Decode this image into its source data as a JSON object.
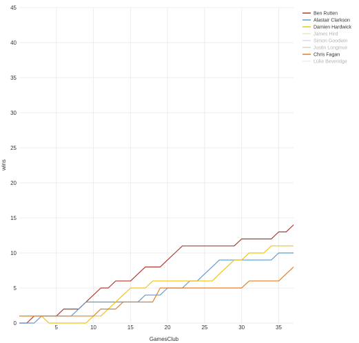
{
  "chart_data": {
    "type": "line",
    "xlabel": "GamesClub",
    "ylabel": "wins",
    "xlim": [
      0,
      37
    ],
    "ylim": [
      0,
      45
    ],
    "xticks": [
      5,
      10,
      15,
      20,
      25,
      30,
      35
    ],
    "yticks": [
      0,
      5,
      10,
      15,
      20,
      25,
      30,
      35,
      40,
      45
    ],
    "grid": true,
    "legend_position": "top-right",
    "series": [
      {
        "name": "Ben Rutten",
        "color": "#b03a2e",
        "faded": false,
        "x": [
          0,
          1,
          2,
          3,
          4,
          5,
          6,
          7,
          8,
          9,
          10,
          11,
          12,
          13,
          14,
          15,
          16,
          17,
          18,
          19,
          20,
          21,
          22,
          23,
          24,
          25,
          26,
          27,
          28,
          29,
          30,
          31,
          32,
          33,
          34,
          35,
          36,
          37
        ],
        "y": [
          0,
          0,
          1,
          1,
          1,
          1,
          2,
          2,
          2,
          3,
          4,
          5,
          5,
          6,
          6,
          6,
          7,
          8,
          8,
          8,
          9,
          10,
          11,
          11,
          11,
          11,
          11,
          11,
          11,
          11,
          12,
          12,
          12,
          12,
          12,
          13,
          13,
          14
        ]
      },
      {
        "name": "Alastair Clarkson",
        "color": "#5b9bd5",
        "faded": false,
        "x": [
          0,
          1,
          2,
          3,
          4,
          5,
          6,
          7,
          8,
          9,
          10,
          11,
          12,
          13,
          14,
          15,
          16,
          17,
          18,
          19,
          20,
          21,
          22,
          23,
          24,
          25,
          26,
          27,
          28,
          29,
          30,
          31,
          32,
          33,
          34,
          35,
          36,
          37
        ],
        "y": [
          0,
          0,
          0,
          1,
          1,
          1,
          1,
          1,
          2,
          3,
          3,
          3,
          3,
          3,
          3,
          3,
          3,
          4,
          4,
          4,
          5,
          5,
          5,
          6,
          6,
          7,
          8,
          9,
          9,
          9,
          9,
          9,
          9,
          9,
          9,
          10,
          10,
          10
        ]
      },
      {
        "name": "Damien Hardwick",
        "color": "#f1c40f",
        "faded": false,
        "x": [
          0,
          1,
          2,
          3,
          4,
          5,
          6,
          7,
          8,
          9,
          10,
          11,
          12,
          13,
          14,
          15,
          16,
          17,
          18,
          19,
          20,
          21,
          22,
          23,
          24,
          25,
          26,
          27,
          28,
          29,
          30,
          31,
          32,
          33,
          34,
          35,
          36,
          37
        ],
        "y": [
          1,
          1,
          1,
          1,
          0,
          0,
          0,
          0,
          0,
          0,
          1,
          1,
          2,
          3,
          4,
          5,
          5,
          5,
          6,
          6,
          6,
          6,
          6,
          6,
          6,
          6,
          6,
          7,
          8,
          9,
          9,
          10,
          10,
          10,
          11,
          11,
          11,
          11
        ]
      },
      {
        "name": "James Hird",
        "color": "#9ccc65",
        "faded": true,
        "x": [],
        "y": []
      },
      {
        "name": "Simon Goodwin",
        "color": "#ab8fd6",
        "faded": true,
        "x": [],
        "y": []
      },
      {
        "name": "Justin Longmuir",
        "color": "#808080",
        "faded": true,
        "x": [],
        "y": []
      },
      {
        "name": "Chris Fagan",
        "color": "#e67e22",
        "faded": false,
        "x": [
          0,
          1,
          2,
          3,
          4,
          5,
          6,
          7,
          8,
          9,
          10,
          11,
          12,
          13,
          14,
          15,
          16,
          17,
          18,
          19,
          20,
          21,
          22,
          23,
          24,
          25,
          26,
          27,
          28,
          29,
          30,
          31,
          32,
          33,
          34,
          35,
          36,
          37
        ],
        "y": [
          1,
          1,
          1,
          1,
          1,
          1,
          1,
          1,
          1,
          1,
          1,
          2,
          2,
          2,
          3,
          3,
          3,
          3,
          3,
          5,
          5,
          5,
          5,
          5,
          5,
          5,
          5,
          5,
          5,
          5,
          5,
          6,
          6,
          6,
          6,
          6,
          7,
          8
        ]
      },
      {
        "name": "Luke Beveridge",
        "color": "#f3b8b8",
        "faded": true,
        "x": [],
        "y": []
      }
    ]
  }
}
